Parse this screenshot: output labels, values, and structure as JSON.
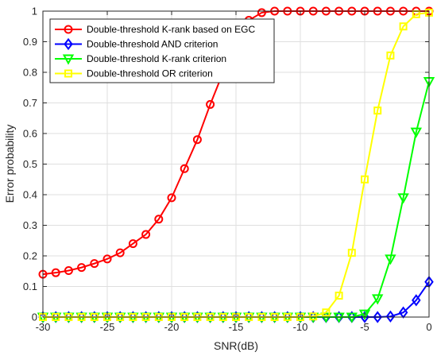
{
  "chart_data": {
    "type": "line",
    "title": "",
    "xlabel": "SNR(dB)",
    "ylabel": "Error probability",
    "xlim": [
      -30,
      0
    ],
    "ylim": [
      0,
      1
    ],
    "x_ticks": [
      -30,
      -25,
      -20,
      -15,
      -10,
      -5,
      0
    ],
    "y_ticks": [
      0,
      0.1,
      0.2,
      0.3,
      0.4,
      0.5,
      0.6,
      0.7,
      0.8,
      0.9,
      1
    ],
    "grid": true,
    "legend_position": "top-left",
    "x": [
      -30,
      -29,
      -28,
      -27,
      -26,
      -25,
      -24,
      -23,
      -22,
      -21,
      -20,
      -19,
      -18,
      -17,
      -16,
      -15,
      -14,
      -13,
      -12,
      -11,
      -10,
      -9,
      -8,
      -7,
      -6,
      -5,
      -4,
      -3,
      -2,
      -1,
      0
    ],
    "series": [
      {
        "name": "Double-threshold K-rank based on EGC",
        "color": "#ff0000",
        "marker": "circle",
        "values": [
          0.14,
          0.145,
          0.152,
          0.162,
          0.175,
          0.19,
          0.21,
          0.24,
          0.27,
          0.32,
          0.39,
          0.485,
          0.58,
          0.695,
          0.8,
          0.9,
          0.97,
          0.995,
          1.0,
          1.0,
          1.0,
          1.0,
          1.0,
          1.0,
          1.0,
          1.0,
          1.0,
          1.0,
          1.0,
          1.0,
          1.0
        ]
      },
      {
        "name": "Double-threshold AND criterion",
        "color": "#0000ff",
        "marker": "diamond",
        "values": [
          0,
          0,
          0,
          0,
          0,
          0,
          0,
          0,
          0,
          0,
          0,
          0,
          0,
          0,
          0,
          0,
          0,
          0,
          0,
          0,
          0,
          0,
          0,
          0,
          0,
          0,
          0,
          0.002,
          0.015,
          0.055,
          0.115
        ]
      },
      {
        "name": "Double-threshold K-rank criterion",
        "color": "#00ff00",
        "marker": "triangle-down",
        "values": [
          0,
          0,
          0,
          0,
          0,
          0,
          0,
          0,
          0,
          0,
          0,
          0,
          0,
          0,
          0,
          0,
          0,
          0,
          0,
          0,
          0,
          0,
          0,
          0,
          0,
          0.01,
          0.06,
          0.19,
          0.39,
          0.605,
          0.77
        ]
      },
      {
        "name": "Double-threshold OR criterion",
        "color": "#ffff00",
        "marker": "square",
        "values": [
          0,
          0,
          0,
          0,
          0,
          0,
          0,
          0,
          0,
          0,
          0,
          0,
          0,
          0,
          0,
          0,
          0,
          0,
          0,
          0,
          0,
          0.002,
          0.015,
          0.07,
          0.21,
          0.45,
          0.675,
          0.855,
          0.95,
          0.99,
          0.995
        ]
      }
    ]
  }
}
